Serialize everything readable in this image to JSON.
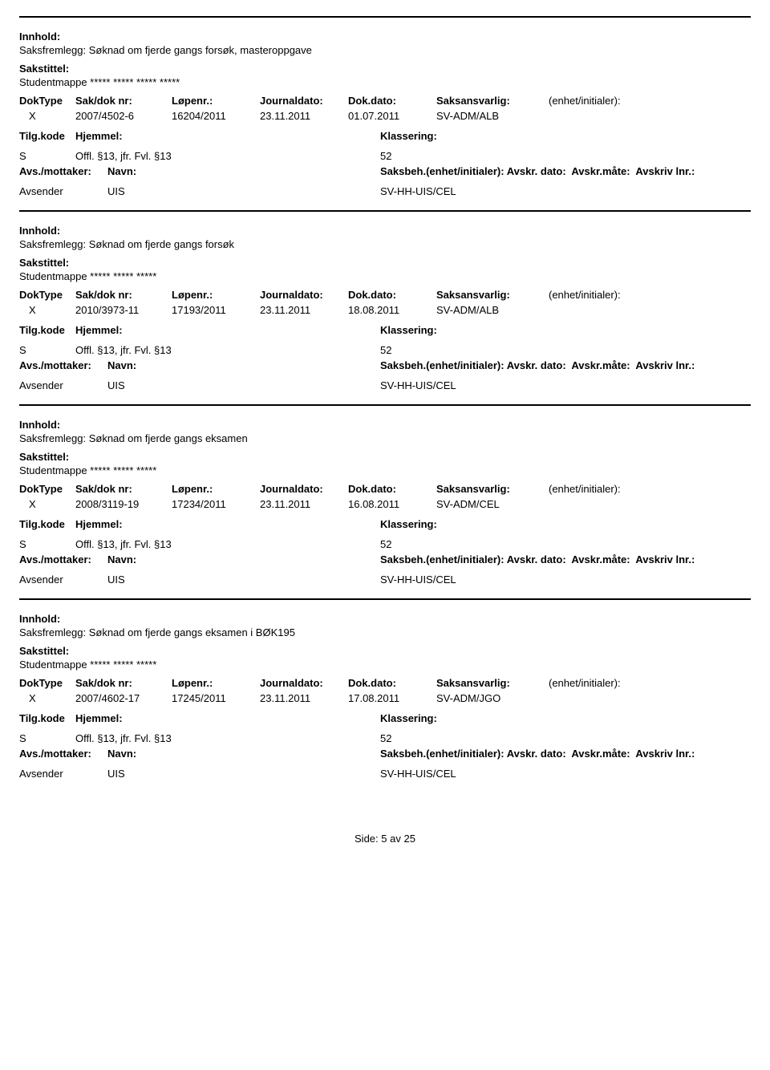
{
  "labels": {
    "innhold": "Innhold:",
    "sakstittel": "Sakstittel:",
    "doktype": "DokType",
    "sakdok": "Sak/dok nr:",
    "lopenr": "Løpenr.:",
    "journaldato": "Journaldato:",
    "dokdato": "Dok.dato:",
    "saksansvarlig": "Saksansvarlig:",
    "enhet": "(enhet/initialer):",
    "tilgkode": "Tilg.kode",
    "hjemmel": "Hjemmel:",
    "klassering": "Klassering:",
    "avsmottaker": "Avs./mottaker:",
    "navn": "Navn:",
    "saksbeh": "Saksbeh.(enhet/initialer):",
    "avskrdato": "Avskr. dato:",
    "avskrmate": "Avskr.måte:",
    "avskrivlnr": "Avskriv lnr.:",
    "avsender": "Avsender"
  },
  "records": [
    {
      "innhold": "Saksfremlegg: Søknad om fjerde gangs forsøk, masteroppgave",
      "sakstittel": "Studentmappe ***** ***** ***** *****",
      "doktype": "X",
      "sakdok": "2007/4502-6",
      "lopenr": "16204/2011",
      "journaldato": "23.11.2011",
      "dokdato": "01.07.2011",
      "saksansvarlig": "SV-ADM/ALB",
      "enhet": "",
      "tilgkode": "S",
      "hjemmel": "Offl. §13, jfr. Fvl. §13",
      "klassering": "52",
      "navn": "UIS",
      "saksbeh": "SV-HH-UIS/CEL"
    },
    {
      "innhold": "Saksfremlegg: Søknad om fjerde gangs forsøk",
      "sakstittel": "Studentmappe ***** ***** *****",
      "doktype": "X",
      "sakdok": "2010/3973-11",
      "lopenr": "17193/2011",
      "journaldato": "23.11.2011",
      "dokdato": "18.08.2011",
      "saksansvarlig": "SV-ADM/ALB",
      "enhet": "",
      "tilgkode": "S",
      "hjemmel": "Offl. §13, jfr. Fvl. §13",
      "klassering": "52",
      "navn": "UIS",
      "saksbeh": "SV-HH-UIS/CEL"
    },
    {
      "innhold": "Saksfremlegg: Søknad om fjerde gangs eksamen",
      "sakstittel": "Studentmappe ***** ***** *****",
      "doktype": "X",
      "sakdok": "2008/3119-19",
      "lopenr": "17234/2011",
      "journaldato": "23.11.2011",
      "dokdato": "16.08.2011",
      "saksansvarlig": "SV-ADM/CEL",
      "enhet": "",
      "tilgkode": "S",
      "hjemmel": "Offl. §13, jfr. Fvl. §13",
      "klassering": "52",
      "navn": "UIS",
      "saksbeh": "SV-HH-UIS/CEL"
    },
    {
      "innhold": "Saksfremlegg: Søknad om fjerde gangs eksamen i BØK195",
      "sakstittel": "Studentmappe ***** ***** *****",
      "doktype": "X",
      "sakdok": "2007/4602-17",
      "lopenr": "17245/2011",
      "journaldato": "23.11.2011",
      "dokdato": "17.08.2011",
      "saksansvarlig": "SV-ADM/JGO",
      "enhet": "",
      "tilgkode": "S",
      "hjemmel": "Offl. §13, jfr. Fvl. §13",
      "klassering": "52",
      "navn": "UIS",
      "saksbeh": "SV-HH-UIS/CEL"
    }
  ],
  "footer": {
    "side_label": "Side:",
    "page": "5",
    "av": "av",
    "total": "25"
  }
}
